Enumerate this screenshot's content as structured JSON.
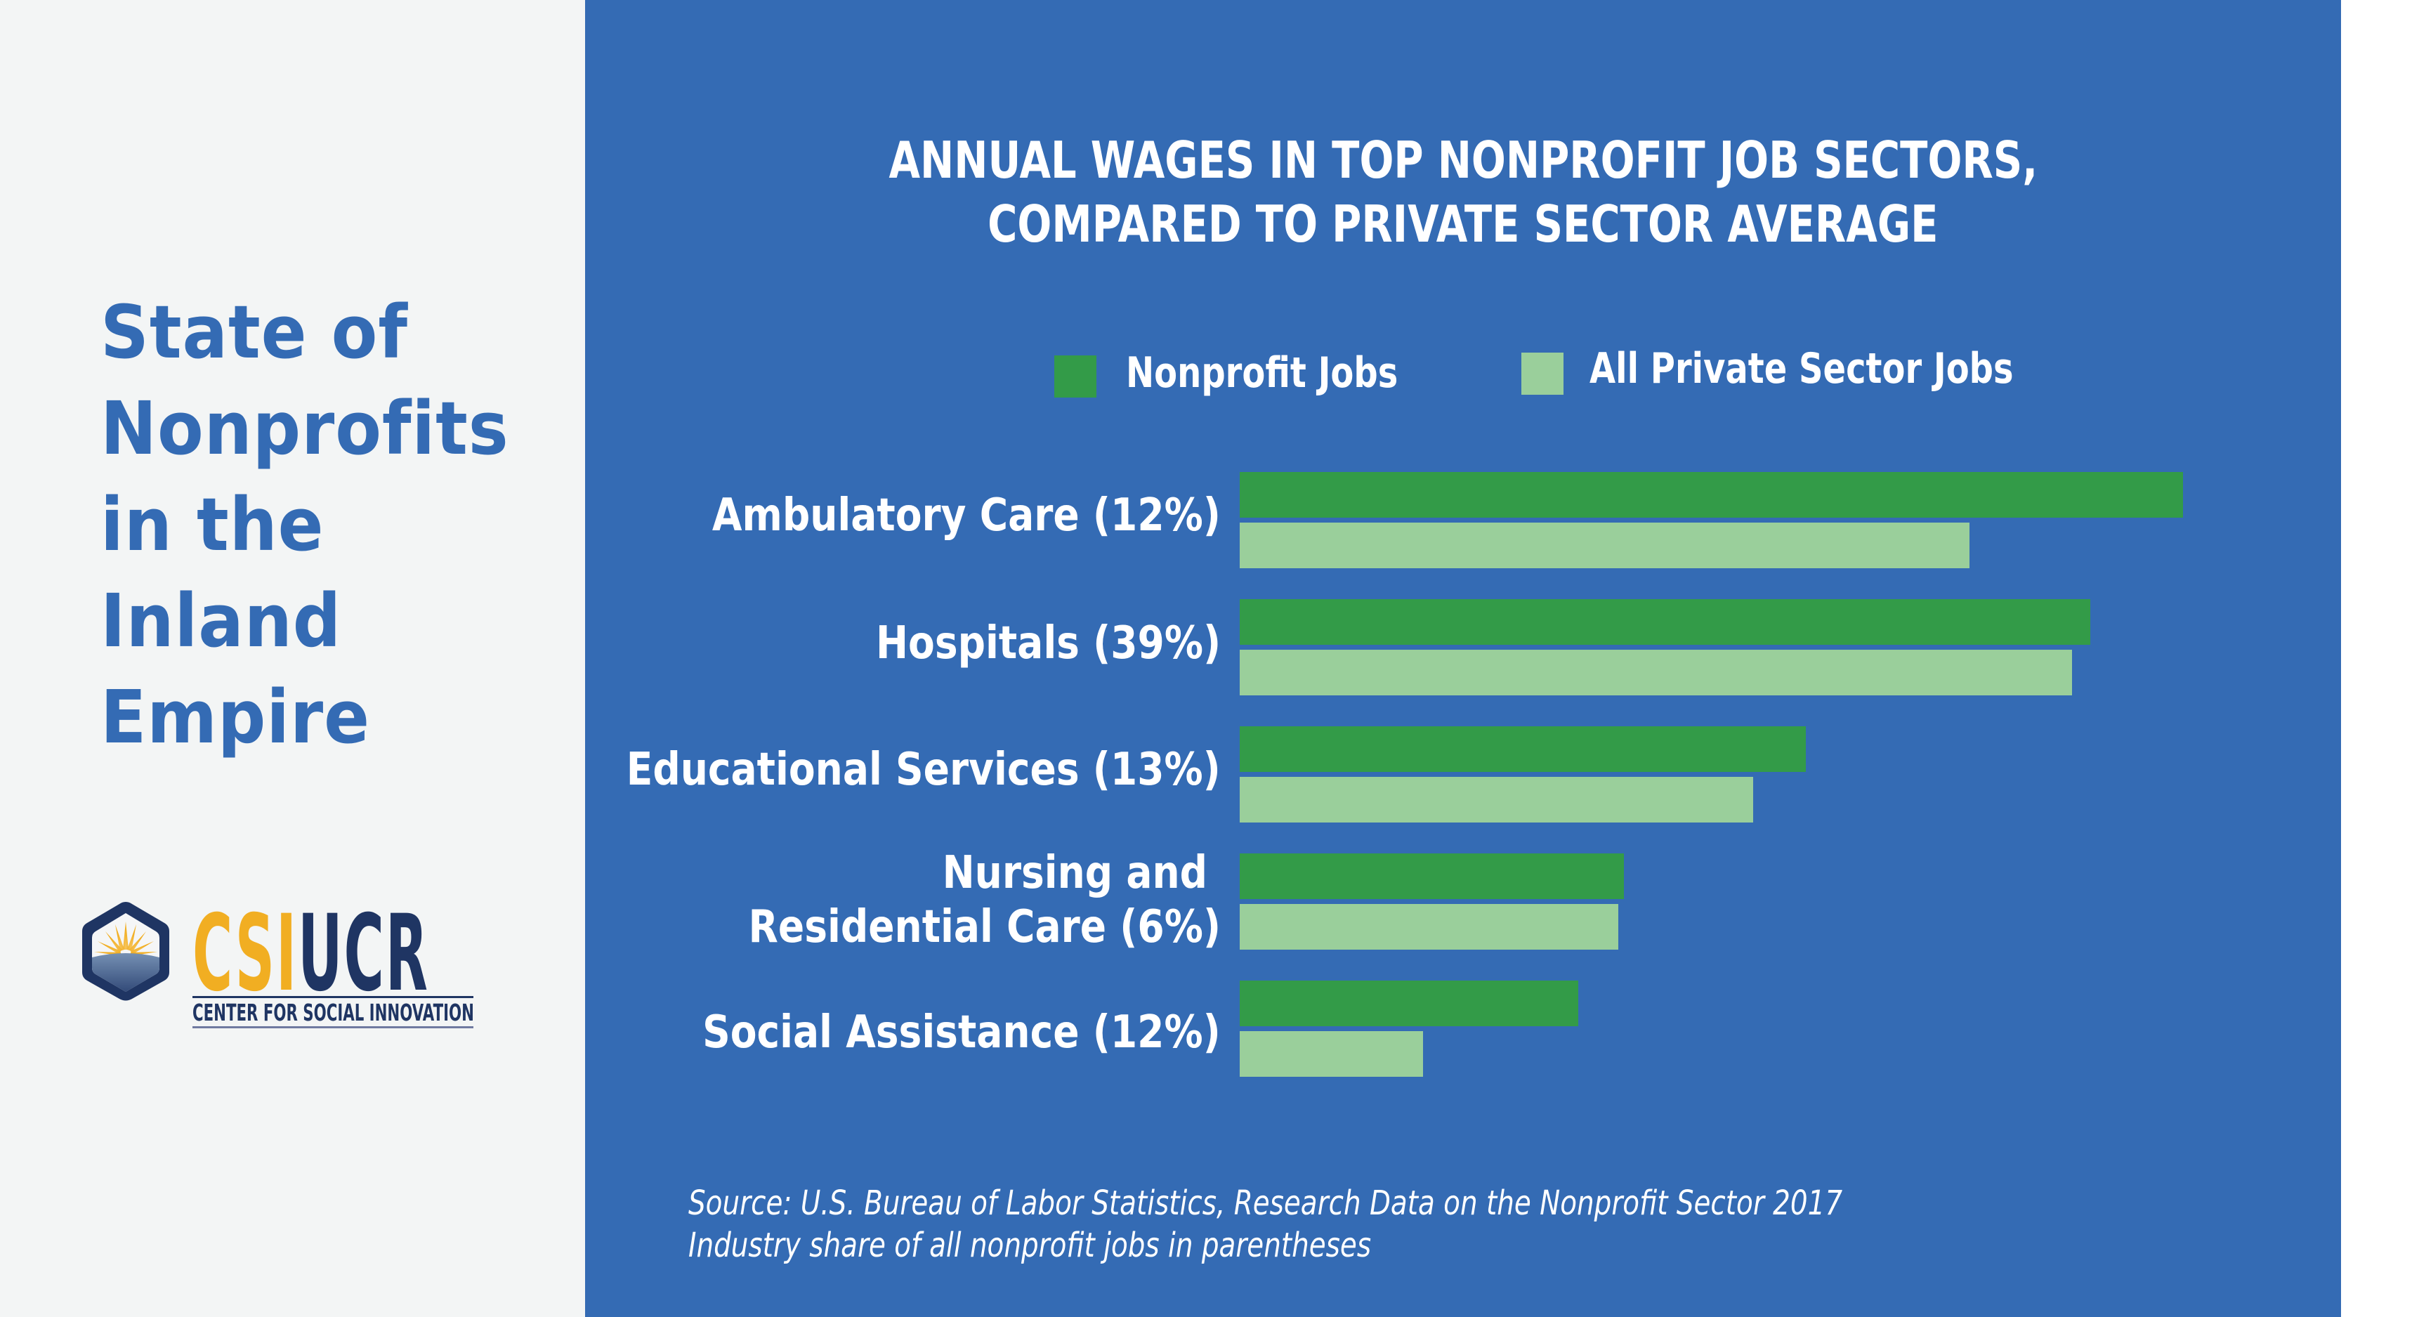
{
  "side_title": {
    "lines": [
      "State of",
      "Nonprofits",
      "in the",
      "Inland",
      "Empire"
    ]
  },
  "logo": {
    "word_gold": "CSI",
    "word_navy": "UCR",
    "subtitle": "CENTER FOR SOCIAL INNOVATION"
  },
  "colors": {
    "panel_blue": "#346bb4",
    "side_bg": "#f3f5f5",
    "nonprofit_green": "#339b48",
    "private_green": "#9acf9b",
    "logo_navy": "#1f3563",
    "logo_gold": "#f1ae22"
  },
  "chart_data": {
    "type": "bar",
    "orientation": "horizontal",
    "title": "ANNUAL WAGES IN TOP NONPROFIT JOB SECTORS, COMPARED TO PRIVATE SECTOR AVERAGE",
    "title_lines": [
      "ANNUAL WAGES IN TOP NONPROFIT JOB SECTORS,",
      "COMPARED TO PRIVATE SECTOR AVERAGE"
    ],
    "xlabel": "",
    "ylabel": "",
    "axis_visible": false,
    "grid": false,
    "legend_position": "top",
    "value_note": "No axis shown; values are relative bar lengths (longest bar = 100)",
    "xlim": [
      0,
      100
    ],
    "categories": [
      {
        "lines": [
          "Ambulatory Care (12%)"
        ]
      },
      {
        "lines": [
          "Hospitals (39%)"
        ]
      },
      {
        "lines": [
          "Educational Services (13%)"
        ]
      },
      {
        "lines": [
          "Nursing and ",
          "Residential Care (6%)"
        ]
      },
      {
        "lines": [
          "Social Assistance (12%)"
        ]
      }
    ],
    "series": [
      {
        "name": "Nonprofit Jobs",
        "color": "#339b48",
        "values": [
          100,
          90.2,
          60.0,
          40.7,
          35.9
        ]
      },
      {
        "name": "All Private Sector Jobs",
        "color": "#9acf9b",
        "values": [
          77.4,
          88.2,
          54.4,
          40.1,
          19.4
        ]
      }
    ]
  },
  "footer": {
    "source_line": "Source: U.S. Bureau of Labor Statistics, Research Data on the Nonprofit Sector 2017",
    "note_line": "Industry share of all nonprofit jobs in parentheses"
  }
}
